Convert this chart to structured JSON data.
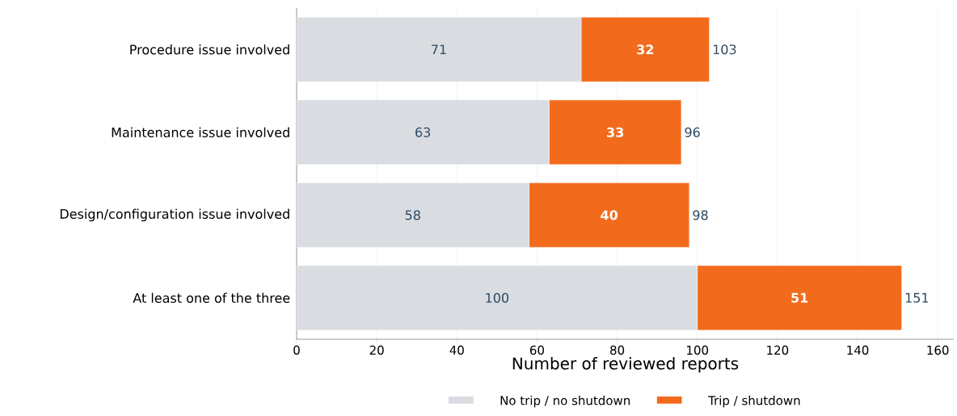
{
  "chart_data": {
    "type": "bar",
    "orientation": "horizontal",
    "stacked": true,
    "categories": [
      "Procedure issue involved",
      "Maintenance issue involved",
      "Design/configuration issue involved",
      "At least one of the three"
    ],
    "series": [
      {
        "name": "No trip / no shutdown",
        "color": "#d9dce0",
        "values": [
          71,
          63,
          58,
          100
        ]
      },
      {
        "name": "Trip / shutdown",
        "color": "#f26b1d",
        "values": [
          32,
          33,
          40,
          51
        ]
      }
    ],
    "totals": [
      "103",
      "96",
      "98",
      "151"
    ],
    "data_labels": true,
    "xlabel": "Number of reviewed reports",
    "xlim": [
      0,
      164
    ],
    "xticks": [
      0,
      20,
      40,
      60,
      80,
      100,
      120,
      140,
      160
    ],
    "grid": "x",
    "legend": "bottom"
  }
}
